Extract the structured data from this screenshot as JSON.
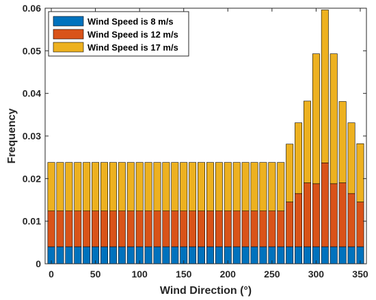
{
  "chart_data": {
    "type": "bar",
    "stacked": true,
    "title": "",
    "xlabel": "Wind Direction (°)",
    "ylabel": "Frequency",
    "xlim": [
      -7,
      357
    ],
    "ylim": [
      0,
      0.06
    ],
    "xticks": [
      0,
      50,
      100,
      150,
      200,
      250,
      300,
      350
    ],
    "yticks": [
      0,
      0.01,
      0.02,
      0.03,
      0.04,
      0.05,
      0.06
    ],
    "ytick_labels": [
      "0",
      "0.01",
      "0.02",
      "0.03",
      "0.04",
      "0.05",
      "0.06"
    ],
    "grid": false,
    "legend_position": "top-left",
    "x": [
      0,
      10,
      20,
      30,
      40,
      50,
      60,
      70,
      80,
      90,
      100,
      110,
      120,
      130,
      140,
      150,
      160,
      170,
      180,
      190,
      200,
      210,
      220,
      230,
      240,
      250,
      260,
      270,
      280,
      290,
      300,
      310,
      320,
      330,
      340,
      350
    ],
    "series": [
      {
        "name": "Wind Speed is 8 m/s",
        "color": "#0072BD",
        "values": [
          0.004,
          0.004,
          0.004,
          0.004,
          0.004,
          0.004,
          0.004,
          0.004,
          0.004,
          0.004,
          0.004,
          0.004,
          0.004,
          0.004,
          0.004,
          0.004,
          0.004,
          0.004,
          0.004,
          0.004,
          0.004,
          0.004,
          0.004,
          0.004,
          0.004,
          0.004,
          0.004,
          0.004,
          0.004,
          0.004,
          0.004,
          0.004,
          0.004,
          0.004,
          0.004,
          0.004
        ]
      },
      {
        "name": "Wind Speed is 12 m/s",
        "color": "#D95319",
        "values": [
          0.0084,
          0.0084,
          0.0084,
          0.0084,
          0.0084,
          0.0084,
          0.0084,
          0.0084,
          0.0084,
          0.0084,
          0.0084,
          0.0084,
          0.0084,
          0.0084,
          0.0084,
          0.0084,
          0.0084,
          0.0084,
          0.0084,
          0.0084,
          0.0084,
          0.0084,
          0.0084,
          0.0084,
          0.0084,
          0.0084,
          0.0084,
          0.0105,
          0.0125,
          0.015,
          0.0148,
          0.0197,
          0.0148,
          0.015,
          0.0125,
          0.0105
        ]
      },
      {
        "name": "Wind Speed is 17 m/s",
        "color": "#EDB120",
        "values": [
          0.0114,
          0.0114,
          0.0114,
          0.0114,
          0.0114,
          0.0114,
          0.0114,
          0.0114,
          0.0114,
          0.0114,
          0.0114,
          0.0114,
          0.0114,
          0.0114,
          0.0114,
          0.0114,
          0.0114,
          0.0114,
          0.0114,
          0.0114,
          0.0114,
          0.0114,
          0.0114,
          0.0114,
          0.0114,
          0.0114,
          0.0114,
          0.0136,
          0.0166,
          0.0192,
          0.0305,
          0.0359,
          0.0305,
          0.0191,
          0.0166,
          0.0137
        ]
      }
    ]
  }
}
